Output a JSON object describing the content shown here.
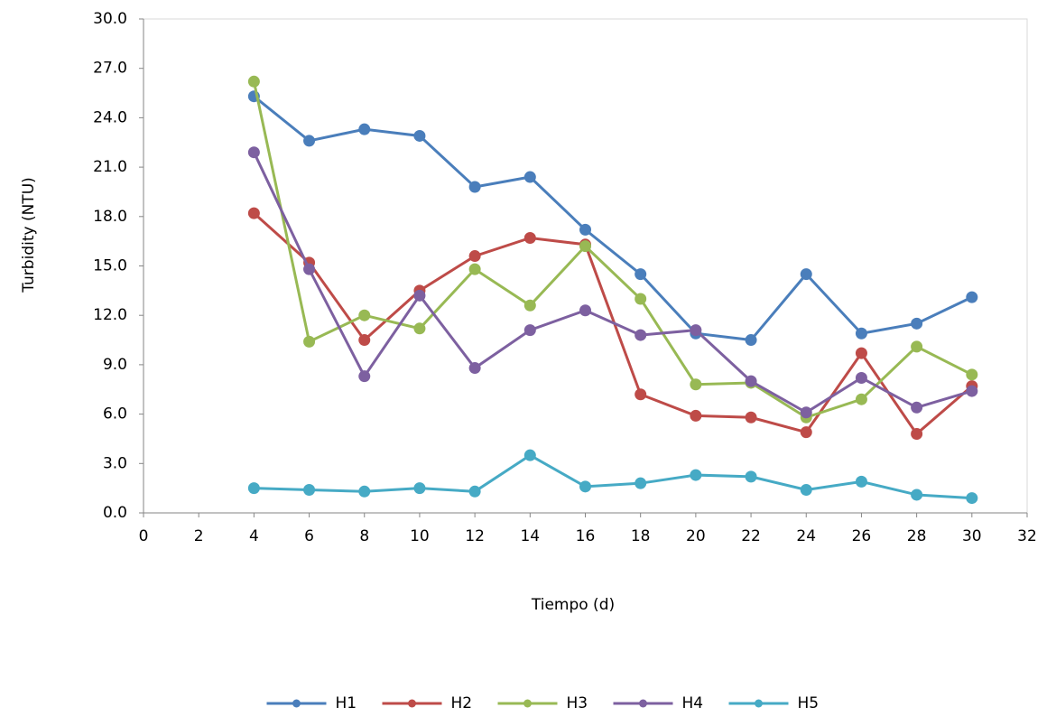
{
  "chart_data": {
    "type": "line",
    "x_label": "Tiempo (d)",
    "y_label": "Turbidity (NTU)",
    "x": [
      4,
      6,
      8,
      10,
      12,
      14,
      16,
      18,
      20,
      22,
      24,
      26,
      28,
      30
    ],
    "series": [
      {
        "name": "H1",
        "color": "#4a7ebb",
        "values": [
          25.3,
          22.6,
          23.3,
          22.9,
          19.8,
          20.4,
          17.2,
          14.5,
          10.9,
          10.5,
          14.5,
          10.9,
          11.5,
          13.1
        ]
      },
      {
        "name": "H2",
        "color": "#be4b48",
        "values": [
          18.2,
          15.2,
          10.5,
          13.5,
          15.6,
          16.7,
          16.3,
          7.2,
          5.9,
          5.8,
          4.9,
          9.7,
          4.8,
          7.7
        ]
      },
      {
        "name": "H3",
        "color": "#98b954",
        "values": [
          26.2,
          10.4,
          12.0,
          11.2,
          14.8,
          12.6,
          16.2,
          13.0,
          7.8,
          7.9,
          5.8,
          6.9,
          10.1,
          8.4
        ]
      },
      {
        "name": "H4",
        "color": "#7d60a0",
        "values": [
          21.9,
          14.8,
          8.3,
          13.2,
          8.8,
          11.1,
          12.3,
          10.8,
          11.1,
          8.0,
          6.1,
          8.2,
          6.4,
          7.4
        ]
      },
      {
        "name": "H5",
        "color": "#46aac5",
        "values": [
          1.5,
          1.4,
          1.3,
          1.5,
          1.3,
          3.5,
          1.6,
          1.8,
          2.3,
          2.2,
          1.4,
          1.9,
          1.1,
          0.9
        ]
      }
    ],
    "xlim": [
      0,
      32
    ],
    "xticks": [
      0,
      2,
      4,
      6,
      8,
      10,
      12,
      14,
      16,
      18,
      20,
      22,
      24,
      26,
      28,
      30,
      32
    ],
    "ylim": [
      0,
      30
    ],
    "yticks": [
      {
        "value": 0,
        "label": "0.0"
      },
      {
        "value": 3,
        "label": "3.0"
      },
      {
        "value": 6,
        "label": "6.0"
      },
      {
        "value": 9,
        "label": "9.0"
      },
      {
        "value": 12,
        "label": "12.0"
      },
      {
        "value": 15,
        "label": "15.0"
      },
      {
        "value": 18,
        "label": "18.0"
      },
      {
        "value": 21,
        "label": "21.0"
      },
      {
        "value": 24,
        "label": "24.0"
      },
      {
        "value": 27,
        "label": "27.0"
      },
      {
        "value": 30,
        "label": "30.0"
      }
    ],
    "legend": "bottom"
  }
}
